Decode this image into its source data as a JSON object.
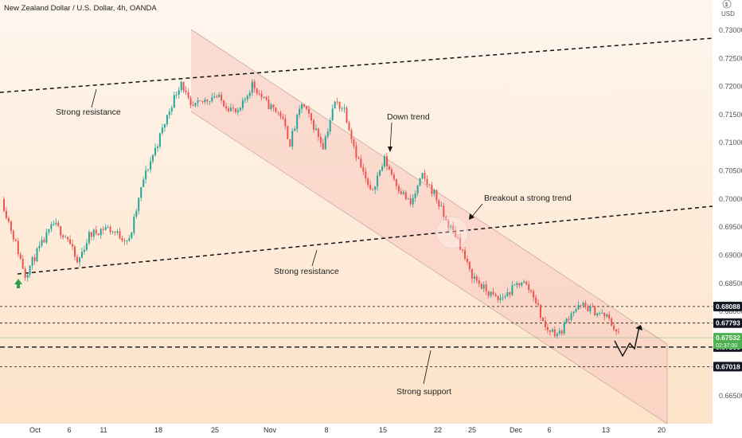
{
  "header": {
    "symbol_title": "New Zealand Dollar / U.S. Dollar, 4h, OANDA"
  },
  "axis": {
    "currency_code": "USD",
    "currency_symbol": "$"
  },
  "colors": {
    "up": "#26a69a",
    "down": "#ef5350",
    "background_top": "#fff6ee",
    "background_bottom": "#fde3c8",
    "channel_fill": "#f8c9c0",
    "channel_edge": "#c9a9a3",
    "price_tag": "#4caf50",
    "level_tag": "#131722"
  },
  "chart_data": {
    "type": "candlestick",
    "title": "New Zealand Dollar / U.S. Dollar, 4h, OANDA",
    "ylim": [
      0.66,
      0.733
    ],
    "y_ticks": [
      "0.73000",
      "0.72500",
      "0.72000",
      "0.71500",
      "0.71000",
      "0.70500",
      "0.70000",
      "0.69500",
      "0.69000",
      "0.68500",
      "0.68000",
      "0.66500"
    ],
    "x_ticks": [
      "Oct",
      "6",
      "11",
      "18",
      "25",
      "Nov",
      "8",
      "15",
      "22",
      "25",
      "Dec",
      "6",
      "13",
      "20"
    ],
    "grid": false,
    "price_path": [
      {
        "t": 0,
        "p": 0.7
      },
      {
        "t": 6,
        "p": 0.692
      },
      {
        "t": 10,
        "p": 0.6865
      },
      {
        "t": 15,
        "p": 0.6905
      },
      {
        "t": 22,
        "p": 0.6955
      },
      {
        "t": 28,
        "p": 0.693
      },
      {
        "t": 32,
        "p": 0.6885
      },
      {
        "t": 37,
        "p": 0.6935
      },
      {
        "t": 44,
        "p": 0.695
      },
      {
        "t": 50,
        "p": 0.6935
      },
      {
        "t": 54,
        "p": 0.6925
      },
      {
        "t": 60,
        "p": 0.7035
      },
      {
        "t": 66,
        "p": 0.71
      },
      {
        "t": 72,
        "p": 0.717
      },
      {
        "t": 76,
        "p": 0.721
      },
      {
        "t": 80,
        "p": 0.716
      },
      {
        "t": 90,
        "p": 0.7185
      },
      {
        "t": 100,
        "p": 0.715
      },
      {
        "t": 106,
        "p": 0.7205
      },
      {
        "t": 112,
        "p": 0.717
      },
      {
        "t": 118,
        "p": 0.715
      },
      {
        "t": 122,
        "p": 0.71
      },
      {
        "t": 127,
        "p": 0.717
      },
      {
        "t": 132,
        "p": 0.713
      },
      {
        "t": 136,
        "p": 0.7095
      },
      {
        "t": 141,
        "p": 0.7172
      },
      {
        "t": 145,
        "p": 0.716
      },
      {
        "t": 150,
        "p": 0.708
      },
      {
        "t": 156,
        "p": 0.701
      },
      {
        "t": 162,
        "p": 0.707
      },
      {
        "t": 168,
        "p": 0.702
      },
      {
        "t": 173,
        "p": 0.699
      },
      {
        "t": 178,
        "p": 0.704
      },
      {
        "t": 183,
        "p": 0.701
      },
      {
        "t": 188,
        "p": 0.696
      },
      {
        "t": 193,
        "p": 0.693
      },
      {
        "t": 198,
        "p": 0.687
      },
      {
        "t": 204,
        "p": 0.684
      },
      {
        "t": 210,
        "p": 0.682
      },
      {
        "t": 215,
        "p": 0.6835
      },
      {
        "t": 220,
        "p": 0.6855
      },
      {
        "t": 225,
        "p": 0.683
      },
      {
        "t": 230,
        "p": 0.677
      },
      {
        "t": 236,
        "p": 0.676
      },
      {
        "t": 241,
        "p": 0.68
      },
      {
        "t": 246,
        "p": 0.681
      },
      {
        "t": 251,
        "p": 0.68
      },
      {
        "t": 256,
        "p": 0.679
      },
      {
        "t": 261,
        "p": 0.676
      }
    ],
    "levels": [
      {
        "label": "0.68088",
        "value": 0.68088,
        "style": "dashed"
      },
      {
        "label": "0.67793",
        "value": 0.67793,
        "style": "dashed"
      },
      {
        "label": "0.67366",
        "value": 0.67366,
        "style": "dashed-bold"
      },
      {
        "label": "0.67018",
        "value": 0.67018,
        "style": "dashed"
      }
    ],
    "current_price": {
      "value": "0.67532",
      "countdown": "02:37:00"
    },
    "annotations": [
      {
        "name": "strong-resistance-upper",
        "text": "Strong resistance"
      },
      {
        "name": "down-trend",
        "text": "Down trend"
      },
      {
        "name": "breakout",
        "text": "Breakout a strong trend"
      },
      {
        "name": "strong-resistance-lower",
        "text": "Strong resistance"
      },
      {
        "name": "strong-support",
        "text": "Strong support"
      }
    ]
  }
}
